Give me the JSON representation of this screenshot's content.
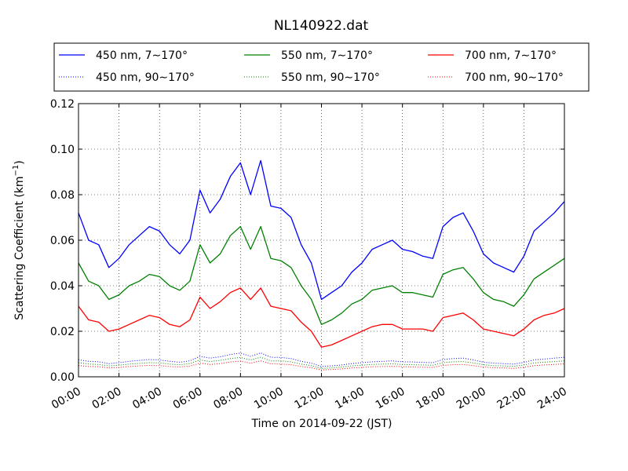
{
  "chart_data": {
    "type": "line",
    "title": "NL140922.dat",
    "xlabel": "Time on 2014-09-22 (JST)",
    "ylabel": "Scattering Coefficient (km",
    "ylabel_sup": "−1",
    "ylabel_end": ")",
    "xlim": [
      "00:00",
      "24:00"
    ],
    "ylim": [
      0,
      0.12
    ],
    "grid": true,
    "legend_placement": "top",
    "x_ticks": [
      "00:00",
      "02:00",
      "04:00",
      "06:00",
      "08:00",
      "10:00",
      "12:00",
      "14:00",
      "16:00",
      "18:00",
      "20:00",
      "22:00",
      "24:00"
    ],
    "y_ticks": [
      "0.00",
      "0.02",
      "0.04",
      "0.06",
      "0.08",
      "0.10",
      "0.12"
    ],
    "x": [
      "00:00",
      "00:30",
      "01:00",
      "01:30",
      "02:00",
      "02:30",
      "03:00",
      "03:30",
      "04:00",
      "04:30",
      "05:00",
      "05:30",
      "06:00",
      "06:30",
      "07:00",
      "07:30",
      "08:00",
      "08:30",
      "09:00",
      "09:30",
      "10:00",
      "10:30",
      "11:00",
      "11:30",
      "12:00",
      "12:30",
      "13:00",
      "13:30",
      "14:00",
      "14:30",
      "15:00",
      "15:30",
      "16:00",
      "16:30",
      "17:00",
      "17:30",
      "18:00",
      "18:30",
      "19:00",
      "19:30",
      "20:00",
      "20:30",
      "21:00",
      "21:30",
      "22:00",
      "22:30",
      "23:00",
      "23:30",
      "24:00"
    ],
    "series": [
      {
        "name": "450 nm, 7∼170°",
        "color": "#0000ff",
        "style": "solid",
        "values": [
          0.072,
          0.06,
          0.058,
          0.048,
          0.052,
          0.058,
          0.062,
          0.066,
          0.064,
          0.058,
          0.054,
          0.06,
          0.082,
          0.072,
          0.078,
          0.088,
          0.094,
          0.08,
          0.095,
          0.075,
          0.074,
          0.07,
          0.058,
          0.05,
          0.034,
          0.037,
          0.04,
          0.046,
          0.05,
          0.056,
          0.058,
          0.06,
          0.056,
          0.055,
          0.053,
          0.052,
          0.066,
          0.07,
          0.072,
          0.064,
          0.054,
          0.05,
          0.048,
          0.046,
          0.053,
          0.064,
          0.068,
          0.072,
          0.077
        ]
      },
      {
        "name": "550 nm, 7∼170°",
        "color": "#008000",
        "style": "solid",
        "values": [
          0.05,
          0.042,
          0.04,
          0.034,
          0.036,
          0.04,
          0.042,
          0.045,
          0.044,
          0.04,
          0.038,
          0.042,
          0.058,
          0.05,
          0.054,
          0.062,
          0.066,
          0.056,
          0.066,
          0.052,
          0.051,
          0.048,
          0.04,
          0.034,
          0.023,
          0.025,
          0.028,
          0.032,
          0.034,
          0.038,
          0.039,
          0.04,
          0.037,
          0.037,
          0.036,
          0.035,
          0.045,
          0.047,
          0.048,
          0.043,
          0.037,
          0.034,
          0.033,
          0.031,
          0.036,
          0.043,
          0.046,
          0.049,
          0.052
        ]
      },
      {
        "name": "700 nm, 7∼170°",
        "color": "#ff0000",
        "style": "solid",
        "values": [
          0.031,
          0.025,
          0.024,
          0.02,
          0.021,
          0.023,
          0.025,
          0.027,
          0.026,
          0.023,
          0.022,
          0.025,
          0.035,
          0.03,
          0.033,
          0.037,
          0.039,
          0.034,
          0.039,
          0.031,
          0.03,
          0.029,
          0.024,
          0.02,
          0.013,
          0.014,
          0.016,
          0.018,
          0.02,
          0.022,
          0.023,
          0.023,
          0.021,
          0.021,
          0.021,
          0.02,
          0.026,
          0.027,
          0.028,
          0.025,
          0.021,
          0.02,
          0.019,
          0.018,
          0.021,
          0.025,
          0.027,
          0.028,
          0.03
        ]
      },
      {
        "name": "450 nm, 90∼170°",
        "color": "#0000ff",
        "style": "dotted",
        "values": [
          0.0075,
          0.0068,
          0.0066,
          0.0058,
          0.0062,
          0.0068,
          0.0072,
          0.0076,
          0.0074,
          0.0068,
          0.0064,
          0.007,
          0.009,
          0.0082,
          0.0088,
          0.0098,
          0.0104,
          0.009,
          0.0105,
          0.0086,
          0.0085,
          0.008,
          0.0068,
          0.006,
          0.0045,
          0.0048,
          0.0052,
          0.0058,
          0.0062,
          0.0066,
          0.0068,
          0.007,
          0.0066,
          0.0065,
          0.0063,
          0.0062,
          0.0076,
          0.008,
          0.0082,
          0.0074,
          0.0064,
          0.006,
          0.0058,
          0.0056,
          0.0063,
          0.0074,
          0.0078,
          0.0082,
          0.0086
        ]
      },
      {
        "name": "550 nm, 90∼170°",
        "color": "#008000",
        "style": "dotted",
        "values": [
          0.0062,
          0.0056,
          0.0054,
          0.0048,
          0.0051,
          0.0056,
          0.0059,
          0.0062,
          0.0061,
          0.0056,
          0.0053,
          0.0058,
          0.0074,
          0.0067,
          0.0072,
          0.008,
          0.0085,
          0.0074,
          0.0086,
          0.007,
          0.007,
          0.0066,
          0.0056,
          0.0049,
          0.0037,
          0.0039,
          0.0043,
          0.0048,
          0.0051,
          0.0054,
          0.0056,
          0.0057,
          0.0054,
          0.0053,
          0.0052,
          0.0051,
          0.0062,
          0.0066,
          0.0067,
          0.0061,
          0.0053,
          0.0049,
          0.0048,
          0.0046,
          0.0052,
          0.0061,
          0.0064,
          0.0067,
          0.007
        ]
      },
      {
        "name": "700 nm, 90∼170°",
        "color": "#ff0000",
        "style": "dotted",
        "values": [
          0.005,
          0.0045,
          0.0044,
          0.0039,
          0.0041,
          0.0045,
          0.0048,
          0.005,
          0.0049,
          0.0045,
          0.0043,
          0.0047,
          0.006,
          0.0054,
          0.0058,
          0.0065,
          0.0069,
          0.006,
          0.007,
          0.0057,
          0.0056,
          0.0053,
          0.0045,
          0.004,
          0.003,
          0.0032,
          0.0035,
          0.0039,
          0.0041,
          0.0044,
          0.0045,
          0.0046,
          0.0044,
          0.0043,
          0.0042,
          0.0041,
          0.005,
          0.0053,
          0.0054,
          0.0049,
          0.0043,
          0.004,
          0.0039,
          0.0037,
          0.0042,
          0.0049,
          0.0052,
          0.0054,
          0.0057
        ]
      }
    ]
  }
}
